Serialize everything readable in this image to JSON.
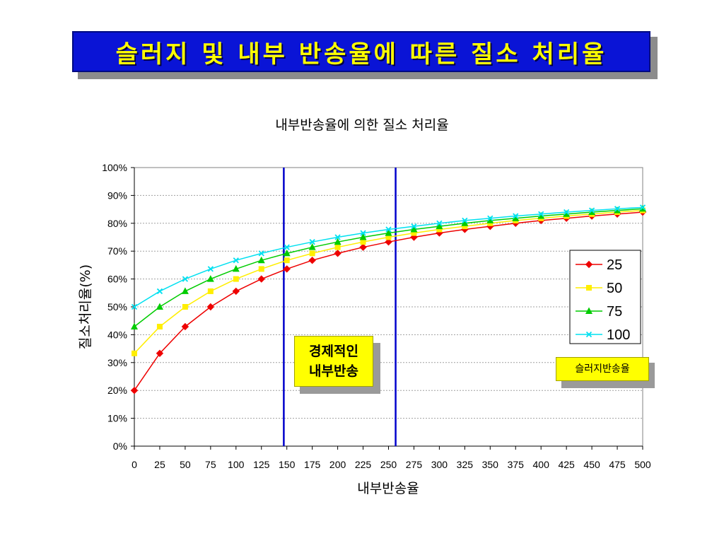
{
  "slide": {
    "banner_title": "슬러지 및 내부 반송율에 따른 질소 처리율"
  },
  "annotations": {
    "economical_line1": "경제적인",
    "economical_line2": "내부반송",
    "sludge_label": "슬러지반송율"
  },
  "colors": {
    "banner_bg": "#0a14d6",
    "banner_text": "#ffff00",
    "marker_line": "#0000cc"
  },
  "chart_data": {
    "type": "line",
    "title": "내부반송율에 의한 질소 처리율",
    "xlabel": "내부반송율",
    "ylabel": "질소처리율(%)",
    "x": [
      0,
      25,
      50,
      75,
      100,
      125,
      150,
      175,
      200,
      225,
      250,
      275,
      300,
      325,
      350,
      375,
      400,
      425,
      450,
      475,
      500
    ],
    "ylim": [
      0,
      100
    ],
    "yticks": [
      "0%",
      "10%",
      "20%",
      "30%",
      "40%",
      "50%",
      "60%",
      "70%",
      "80%",
      "90%",
      "100%"
    ],
    "grid": "horizontal",
    "legend_position": "right",
    "vertical_markers": [
      147,
      257
    ],
    "series": [
      {
        "name": "25",
        "color": "#ee0000",
        "marker": "diamond",
        "values": [
          20.0,
          33.3,
          42.9,
          50.0,
          55.6,
          60.0,
          63.6,
          66.7,
          69.2,
          71.4,
          73.3,
          75.0,
          76.5,
          77.8,
          78.9,
          80.0,
          81.0,
          81.8,
          82.6,
          83.3,
          84.0
        ]
      },
      {
        "name": "50",
        "color": "#ffee00",
        "marker": "square",
        "values": [
          33.3,
          42.9,
          50.0,
          55.6,
          60.0,
          63.6,
          66.7,
          69.2,
          71.4,
          73.3,
          75.0,
          76.5,
          77.8,
          78.9,
          80.0,
          81.0,
          81.8,
          82.6,
          83.3,
          84.0,
          84.6
        ]
      },
      {
        "name": "75",
        "color": "#00cc00",
        "marker": "triangle",
        "values": [
          42.9,
          50.0,
          55.6,
          60.0,
          63.6,
          66.7,
          69.2,
          71.4,
          73.3,
          75.0,
          76.5,
          77.8,
          78.9,
          80.0,
          81.0,
          81.8,
          82.6,
          83.3,
          84.0,
          84.6,
          85.2
        ]
      },
      {
        "name": "100",
        "color": "#00e0f0",
        "marker": "x",
        "values": [
          50.0,
          55.6,
          60.0,
          63.6,
          66.7,
          69.2,
          71.4,
          73.3,
          75.0,
          76.5,
          77.8,
          78.9,
          80.0,
          81.0,
          81.8,
          82.6,
          83.3,
          84.0,
          84.6,
          85.2,
          85.7
        ]
      }
    ]
  }
}
